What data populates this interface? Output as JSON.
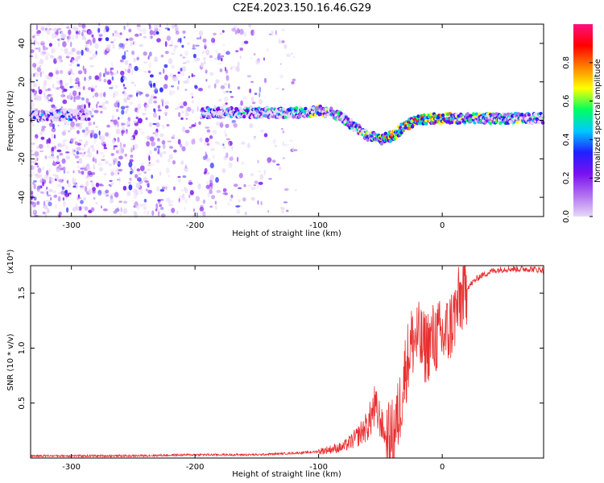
{
  "figure": {
    "title": "C2E4.2023.150.16.46.G29"
  },
  "chart_data": [
    {
      "type": "heatmap",
      "xlabel": "Height of straight line (km)",
      "ylabel": "Frequency (Hz)",
      "xlim": [
        -333,
        82
      ],
      "ylim": [
        -50,
        50
      ],
      "xticks": [
        -300,
        -200,
        -100,
        0
      ],
      "xtick_labels": [
        "-300",
        "-200",
        "-100",
        "0"
      ],
      "yticks": [
        -40,
        -20,
        0,
        20,
        40
      ],
      "ytick_labels": [
        "-40",
        "-20",
        "0",
        "20",
        "40"
      ],
      "colorbar": {
        "label": "Normalized spectral amplitude",
        "range": [
          0,
          1
        ],
        "ticks": [
          0,
          0.2,
          0.4,
          0.6,
          0.8
        ],
        "tick_labels": [
          "0.0",
          "0.2",
          "0.4",
          "0.6",
          "0.8"
        ],
        "colors": [
          "#e8d8f8",
          "#b070f0",
          "#7a10f0",
          "#2020ff",
          "#00c8ff",
          "#00ff60",
          "#ffff00",
          "#ff8000",
          "#ff0000",
          "#ff1080"
        ]
      },
      "ridge": {
        "x": [
          -333,
          -300,
          -290,
          -190,
          -150,
          -130,
          -115,
          -100,
          -90,
          -80,
          -70,
          -60,
          -50,
          -40,
          -30,
          -20,
          -10,
          0,
          10,
          30,
          60,
          82
        ],
        "y": [
          2,
          3,
          3,
          4,
          4,
          4,
          4,
          5,
          4,
          1,
          -4,
          -8,
          -10,
          -8,
          -3,
          0,
          1,
          1,
          1,
          1,
          1,
          1
        ],
        "amplitude": [
          0.35,
          0.3,
          0.25,
          0.35,
          0.4,
          0.45,
          0.5,
          0.55,
          0.5,
          0.5,
          0.55,
          0.6,
          0.7,
          0.75,
          0.8,
          0.85,
          0.9,
          0.85,
          0.6,
          0.55,
          0.5,
          0.45
        ]
      }
    },
    {
      "type": "line",
      "xlabel": "Height of straight line (km)",
      "ylabel": "SNR (10 * v/v)",
      "y_multiplier": "(x10⁴)",
      "xlim": [
        -333,
        82
      ],
      "ylim": [
        0,
        1.75
      ],
      "xticks": [
        -300,
        -200,
        -100,
        0
      ],
      "xtick_labels": [
        "-300",
        "-200",
        "-100",
        "0"
      ],
      "yticks": [
        0.5,
        1.0,
        1.5
      ],
      "ytick_labels": [
        "0.5",
        "1.0",
        "1.5"
      ],
      "series": [
        {
          "color": "#e83030",
          "x": [
            -333,
            -300,
            -250,
            -200,
            -150,
            -110,
            -100,
            -90,
            -80,
            -70,
            -60,
            -55,
            -50,
            -45,
            -40,
            -35,
            -30,
            -25,
            -20,
            -15,
            -10,
            -5,
            0,
            5,
            10,
            15,
            20,
            30,
            40,
            50,
            60,
            70,
            82
          ],
          "y": [
            0.02,
            0.02,
            0.02,
            0.03,
            0.03,
            0.05,
            0.06,
            0.08,
            0.1,
            0.18,
            0.3,
            0.45,
            0.35,
            0.15,
            0.2,
            0.4,
            0.8,
            1.05,
            1.1,
            1.0,
            1.05,
            1.1,
            1.1,
            1.15,
            1.3,
            1.45,
            1.55,
            1.65,
            1.7,
            1.72,
            1.72,
            1.72,
            1.71
          ]
        }
      ]
    }
  ]
}
